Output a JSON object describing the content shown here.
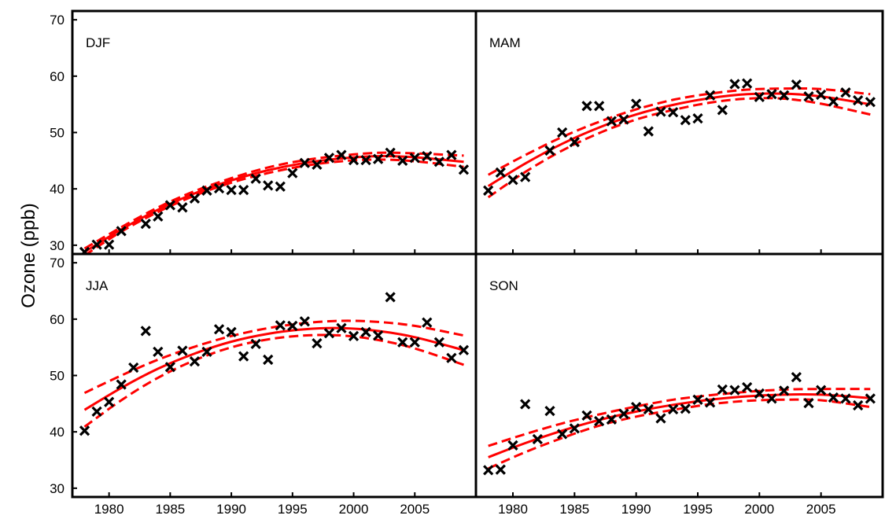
{
  "chart_data": {
    "type": "scatter",
    "ylabel": "Ozone (ppb)",
    "xlabel": "",
    "xlim": [
      1977,
      2010
    ],
    "ylim": [
      29,
      71
    ],
    "xticks": [
      1980,
      1985,
      1990,
      1995,
      2000,
      2005
    ],
    "yticks": [
      30,
      40,
      50,
      60,
      70
    ],
    "grid": false,
    "colors": {
      "points": "#000000",
      "fit": "#ff0000",
      "frame": "#000000"
    },
    "panels": [
      {
        "label": "DJF",
        "points": {
          "x": [
            1978,
            1979,
            1980,
            1981,
            1983,
            1984,
            1985,
            1986,
            1987,
            1988,
            1989,
            1990,
            1991,
            1992,
            1993,
            1994,
            1995,
            1996,
            1997,
            1998,
            1999,
            2000,
            2001,
            2002,
            2003,
            2004,
            2005,
            2006,
            2007,
            2008,
            2009
          ],
          "y": [
            28.8,
            30.1,
            30.1,
            32.5,
            33.8,
            35.1,
            37.1,
            36.7,
            38.3,
            39.7,
            40.1,
            39.8,
            39.8,
            41.8,
            40.6,
            40.4,
            42.8,
            44.6,
            44.3,
            45.5,
            46.0,
            45.1,
            45.1,
            45.3,
            46.4,
            45.0,
            45.5,
            45.8,
            44.8,
            46.0,
            43.4
          ]
        },
        "fit": {
          "x": [
            1978,
            1981,
            1984,
            1987,
            1990,
            1993,
            1996,
            1999,
            2002,
            2005,
            2009
          ],
          "y": [
            28.8,
            32.8,
            36.3,
            39.2,
            41.5,
            43.3,
            44.6,
            45.4,
            45.8,
            45.6,
            44.8
          ],
          "lower": [
            28.2,
            32.4,
            35.9,
            38.8,
            41.1,
            42.8,
            44.1,
            44.9,
            45.2,
            44.9,
            43.9
          ],
          "upper": [
            29.4,
            33.2,
            36.7,
            39.6,
            41.9,
            43.8,
            45.1,
            45.9,
            46.4,
            46.3,
            45.9
          ]
        }
      },
      {
        "label": "MAM",
        "points": {
          "x": [
            1978,
            1979,
            1980,
            1981,
            1983,
            1984,
            1985,
            1986,
            1987,
            1988,
            1989,
            1990,
            1991,
            1992,
            1993,
            1994,
            1995,
            1996,
            1997,
            1998,
            1999,
            2000,
            2001,
            2002,
            2003,
            2004,
            2005,
            2006,
            2007,
            2008,
            2009
          ],
          "y": [
            39.7,
            42.9,
            41.6,
            42.1,
            46.8,
            50.0,
            48.3,
            54.7,
            54.7,
            52.0,
            52.3,
            55.1,
            50.2,
            53.7,
            53.6,
            52.2,
            52.5,
            56.6,
            54.0,
            58.6,
            58.7,
            56.3,
            56.8,
            56.6,
            58.5,
            56.4,
            56.7,
            55.5,
            57.1,
            55.7,
            55.4
          ]
        },
        "fit": {
          "x": [
            1978,
            1981,
            1984,
            1987,
            1990,
            1993,
            1996,
            1999,
            2002,
            2005,
            2009
          ],
          "y": [
            40.5,
            44.5,
            48.0,
            50.9,
            53.2,
            54.9,
            56.1,
            56.8,
            56.9,
            56.4,
            55.0
          ],
          "lower": [
            38.5,
            43.0,
            46.8,
            49.9,
            52.3,
            54.0,
            55.3,
            56.0,
            56.0,
            55.1,
            53.2
          ],
          "upper": [
            42.5,
            46.0,
            49.2,
            51.9,
            54.1,
            55.8,
            56.9,
            57.6,
            57.8,
            57.7,
            56.8
          ]
        }
      },
      {
        "label": "JJA",
        "points": {
          "x": [
            1978,
            1979,
            1980,
            1981,
            1982,
            1983,
            1984,
            1985,
            1986,
            1987,
            1988,
            1989,
            1990,
            1991,
            1992,
            1993,
            1994,
            1995,
            1996,
            1997,
            1998,
            1999,
            2000,
            2001,
            2002,
            2003,
            2004,
            2005,
            2006,
            2007,
            2008,
            2009
          ],
          "y": [
            40.2,
            43.6,
            45.3,
            48.4,
            51.4,
            57.9,
            54.2,
            51.5,
            54.4,
            52.5,
            54.2,
            58.2,
            57.7,
            53.4,
            55.6,
            52.8,
            58.9,
            58.8,
            59.6,
            55.7,
            57.5,
            58.4,
            57.0,
            57.7,
            57.1,
            63.9,
            55.9,
            55.9,
            59.4,
            55.9,
            53.1,
            54.5
          ]
        },
        "fit": {
          "x": [
            1978,
            1981,
            1984,
            1987,
            1990,
            1993,
            1996,
            1999,
            2002,
            2005,
            2009
          ],
          "y": [
            43.9,
            47.8,
            51.2,
            53.9,
            56.0,
            57.4,
            58.2,
            58.4,
            57.9,
            56.8,
            54.5
          ],
          "lower": [
            40.9,
            45.6,
            49.6,
            52.7,
            55.0,
            56.4,
            57.1,
            57.1,
            56.3,
            54.8,
            51.9
          ],
          "upper": [
            46.9,
            50.0,
            52.8,
            55.1,
            57.0,
            58.4,
            59.3,
            59.7,
            59.5,
            58.8,
            57.1
          ]
        }
      },
      {
        "label": "SON",
        "points": {
          "x": [
            1978,
            1979,
            1980,
            1981,
            1982,
            1983,
            1984,
            1985,
            1986,
            1987,
            1988,
            1989,
            1990,
            1991,
            1992,
            1993,
            1994,
            1995,
            1996,
            1997,
            1998,
            1999,
            2000,
            2001,
            2002,
            2003,
            2004,
            2005,
            2006,
            2007,
            2008,
            2009
          ],
          "y": [
            33.2,
            33.3,
            37.6,
            44.9,
            38.7,
            43.7,
            39.6,
            40.6,
            42.9,
            41.9,
            42.2,
            43.2,
            44.4,
            44.0,
            42.4,
            44.0,
            44.1,
            45.7,
            45.2,
            47.5,
            47.4,
            47.9,
            46.8,
            45.9,
            47.3,
            49.7,
            45.1,
            47.4,
            46.1,
            45.9,
            44.7,
            45.9
          ]
        },
        "fit": {
          "x": [
            1978,
            1981,
            1984,
            1987,
            1990,
            1993,
            1996,
            1999,
            2002,
            2005,
            2009
          ],
          "y": [
            35.5,
            38.0,
            40.2,
            42.1,
            43.6,
            44.8,
            45.7,
            46.3,
            46.6,
            46.6,
            46.0
          ],
          "lower": [
            33.5,
            36.4,
            38.9,
            41.1,
            42.7,
            43.9,
            44.9,
            45.5,
            45.7,
            45.6,
            44.4
          ],
          "upper": [
            37.5,
            39.6,
            41.5,
            43.1,
            44.5,
            45.7,
            46.5,
            47.1,
            47.5,
            47.6,
            47.6
          ]
        }
      }
    ]
  }
}
